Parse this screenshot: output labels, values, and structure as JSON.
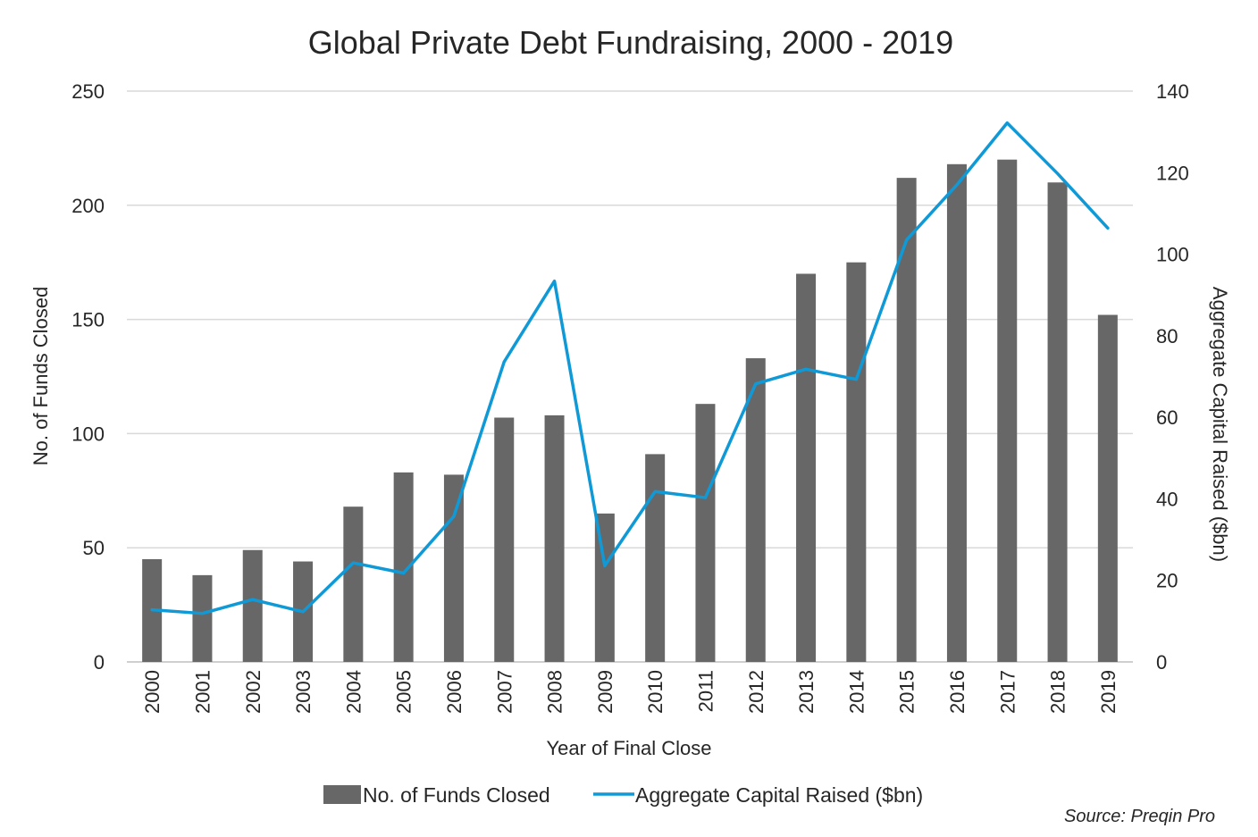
{
  "chart_data": {
    "type": "bar+line",
    "title": "Global Private Debt Fundraising, 2000 - 2019",
    "xlabel": "Year of Final Close",
    "ylabel_left": "No. of Funds Closed",
    "ylabel_right": "Aggregate Capital Raised ($bn)",
    "categories": [
      "2000",
      "2001",
      "2002",
      "2003",
      "2004",
      "2005",
      "2006",
      "2007",
      "2008",
      "2009",
      "2010",
      "2011",
      "2012",
      "2013",
      "2014",
      "2015",
      "2016",
      "2017",
      "2018",
      "2019"
    ],
    "ylim_left": [
      0,
      250
    ],
    "yticks_left": [
      "0",
      "50",
      "100",
      "150",
      "200",
      "250"
    ],
    "ylim_right": [
      0,
      140
    ],
    "yticks_right": [
      "0",
      "20",
      "40",
      "60",
      "80",
      "100",
      "120",
      "140"
    ],
    "grid": true,
    "legend_position": "bottom",
    "series": [
      {
        "name": "No. of Funds Closed",
        "type": "bar",
        "axis": "left",
        "color": "#676767",
        "values": [
          45,
          38,
          49,
          44,
          68,
          83,
          82,
          107,
          108,
          65,
          91,
          113,
          133,
          170,
          175,
          212,
          218,
          220,
          210,
          152
        ]
      },
      {
        "name": "Aggregate Capital Raised ($bn)",
        "type": "line",
        "axis": "right",
        "color": "#0F9AD7",
        "values": [
          12.8,
          11.9,
          15.3,
          12.3,
          24.3,
          21.8,
          35.7,
          73.6,
          93.4,
          23.6,
          41.8,
          40.3,
          68.2,
          71.8,
          69.3,
          103.5,
          117.0,
          132.2,
          119.8,
          106.4
        ]
      }
    ],
    "source": "Source: Preqin Pro"
  }
}
